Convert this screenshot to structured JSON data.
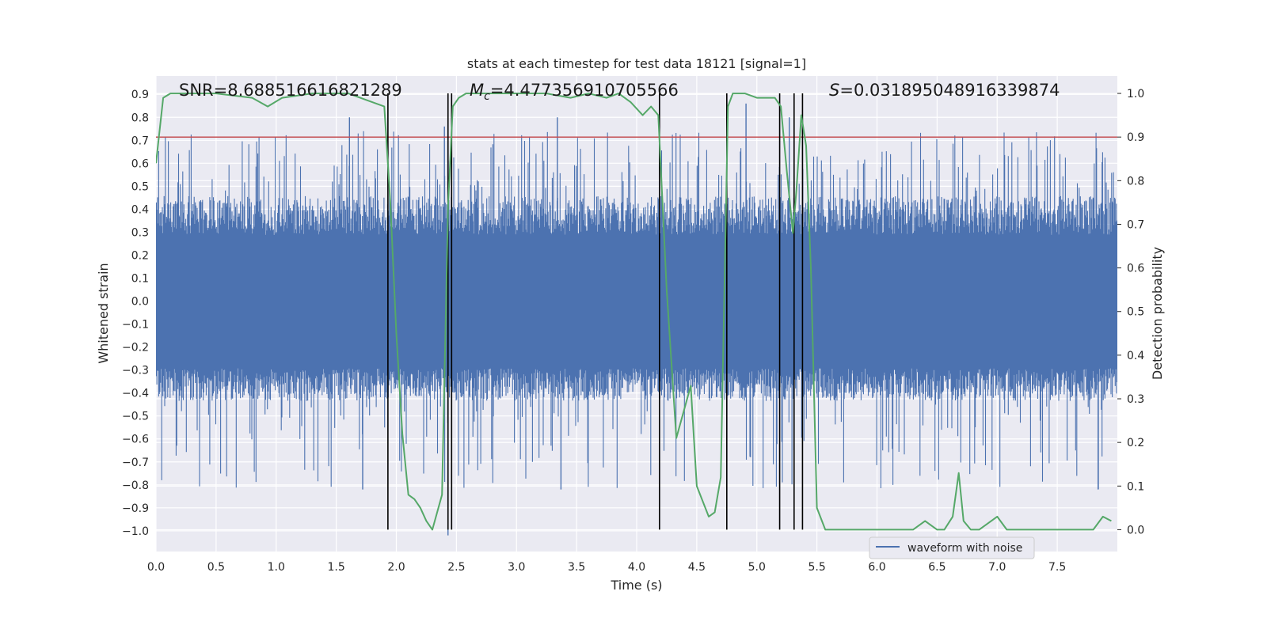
{
  "chart_data": {
    "type": "line",
    "title": "stats at each timestep for test data 18121 [signal=1]",
    "xlabel": "Time (s)",
    "ylabel_left": "Whitened strain",
    "ylabel_right": "Detection probability",
    "xlim": [
      0.0,
      8.0
    ],
    "ylim_left": [
      -1.09,
      0.98
    ],
    "ylim_right": [
      -0.05,
      1.04
    ],
    "x_ticks": [
      "0.0",
      "0.5",
      "1.0",
      "1.5",
      "2.0",
      "2.5",
      "3.0",
      "3.5",
      "4.0",
      "4.5",
      "5.0",
      "5.5",
      "6.0",
      "6.5",
      "7.0",
      "7.5"
    ],
    "y_ticks_left": [
      "0.9",
      "0.8",
      "0.7",
      "0.6",
      "0.5",
      "0.4",
      "0.3",
      "0.2",
      "0.1",
      "0.0",
      "−0.1",
      "−0.2",
      "−0.3",
      "−0.4",
      "−0.5",
      "−0.6",
      "−0.7",
      "−0.8",
      "−0.9",
      "−1.0"
    ],
    "y_ticks_right": [
      "1.0",
      "0.9",
      "0.8",
      "0.7",
      "0.6",
      "0.5",
      "0.4",
      "0.3",
      "0.2",
      "0.1",
      "0.0"
    ],
    "grid": true,
    "legend": {
      "entries": [
        "waveform with noise"
      ],
      "location": "lower-right"
    },
    "annotations": {
      "snr": "SNR=8.688516616821289",
      "mc_symbol": "M",
      "mc_sub": "c",
      "mc_value": "=4.477356910705566",
      "s_symbol": "S",
      "s_value": "=0.031895048916339874"
    },
    "threshold": {
      "axis": "right",
      "value": 0.9
    },
    "vertical_lines": [
      1.93,
      2.43,
      2.46,
      4.19,
      4.75,
      5.19,
      5.31,
      5.38
    ],
    "series": [
      {
        "name": "waveform with noise",
        "axis": "left",
        "color": "#4c72b0",
        "kind": "noise-band",
        "duration": 8.0,
        "envelope": {
          "pos_base": 0.48,
          "pos_max": 0.74,
          "neg_base": -0.45,
          "neg_min": -0.82
        },
        "spikes": [
          {
            "x": 1.61,
            "y": 0.8
          },
          {
            "x": 2.43,
            "y": -1.02
          },
          {
            "x": 2.4,
            "y": 0.76
          },
          {
            "x": 3.34,
            "y": 0.8
          },
          {
            "x": 4.91,
            "y": 0.86
          },
          {
            "x": 5.27,
            "y": 0.8
          },
          {
            "x": 1.72,
            "y": -0.82
          },
          {
            "x": 3.37,
            "y": -0.82
          },
          {
            "x": 7.84,
            "y": -0.82
          }
        ]
      },
      {
        "name": "detection probability",
        "axis": "right",
        "color": "#55a868",
        "x": [
          0.0,
          0.06,
          0.12,
          0.25,
          0.5,
          0.8,
          0.93,
          1.05,
          1.3,
          1.6,
          1.9,
          1.95,
          2.0,
          2.05,
          2.1,
          2.15,
          2.2,
          2.25,
          2.3,
          2.38,
          2.43,
          2.47,
          2.52,
          2.58,
          2.7,
          3.0,
          3.25,
          3.45,
          3.6,
          3.75,
          3.85,
          3.95,
          4.05,
          4.12,
          4.18,
          4.25,
          4.33,
          4.45,
          4.5,
          4.6,
          4.65,
          4.7,
          4.76,
          4.8,
          4.9,
          5.0,
          5.15,
          5.2,
          5.25,
          5.3,
          5.33,
          5.37,
          5.41,
          5.45,
          5.5,
          5.57,
          5.7,
          6.0,
          6.3,
          6.4,
          6.5,
          6.56,
          6.63,
          6.68,
          6.72,
          6.78,
          6.85,
          7.0,
          7.08,
          7.3,
          7.6,
          7.8,
          7.88,
          7.95
        ],
        "y": [
          0.84,
          0.99,
          1.0,
          1.0,
          1.0,
          0.99,
          0.97,
          0.99,
          1.0,
          1.0,
          0.97,
          0.75,
          0.45,
          0.22,
          0.08,
          0.07,
          0.05,
          0.02,
          0.0,
          0.08,
          0.74,
          0.97,
          0.99,
          1.0,
          1.0,
          1.0,
          1.0,
          0.99,
          1.0,
          0.99,
          1.0,
          0.98,
          0.95,
          0.97,
          0.95,
          0.55,
          0.21,
          0.33,
          0.1,
          0.03,
          0.04,
          0.12,
          0.97,
          1.0,
          1.0,
          0.99,
          0.99,
          0.97,
          0.82,
          0.68,
          0.78,
          0.95,
          0.88,
          0.6,
          0.05,
          0.0,
          0.0,
          0.0,
          0.0,
          0.02,
          0.0,
          0.0,
          0.03,
          0.13,
          0.02,
          0.0,
          0.0,
          0.03,
          0.0,
          0.0,
          0.0,
          0.0,
          0.03,
          0.02
        ]
      }
    ]
  }
}
